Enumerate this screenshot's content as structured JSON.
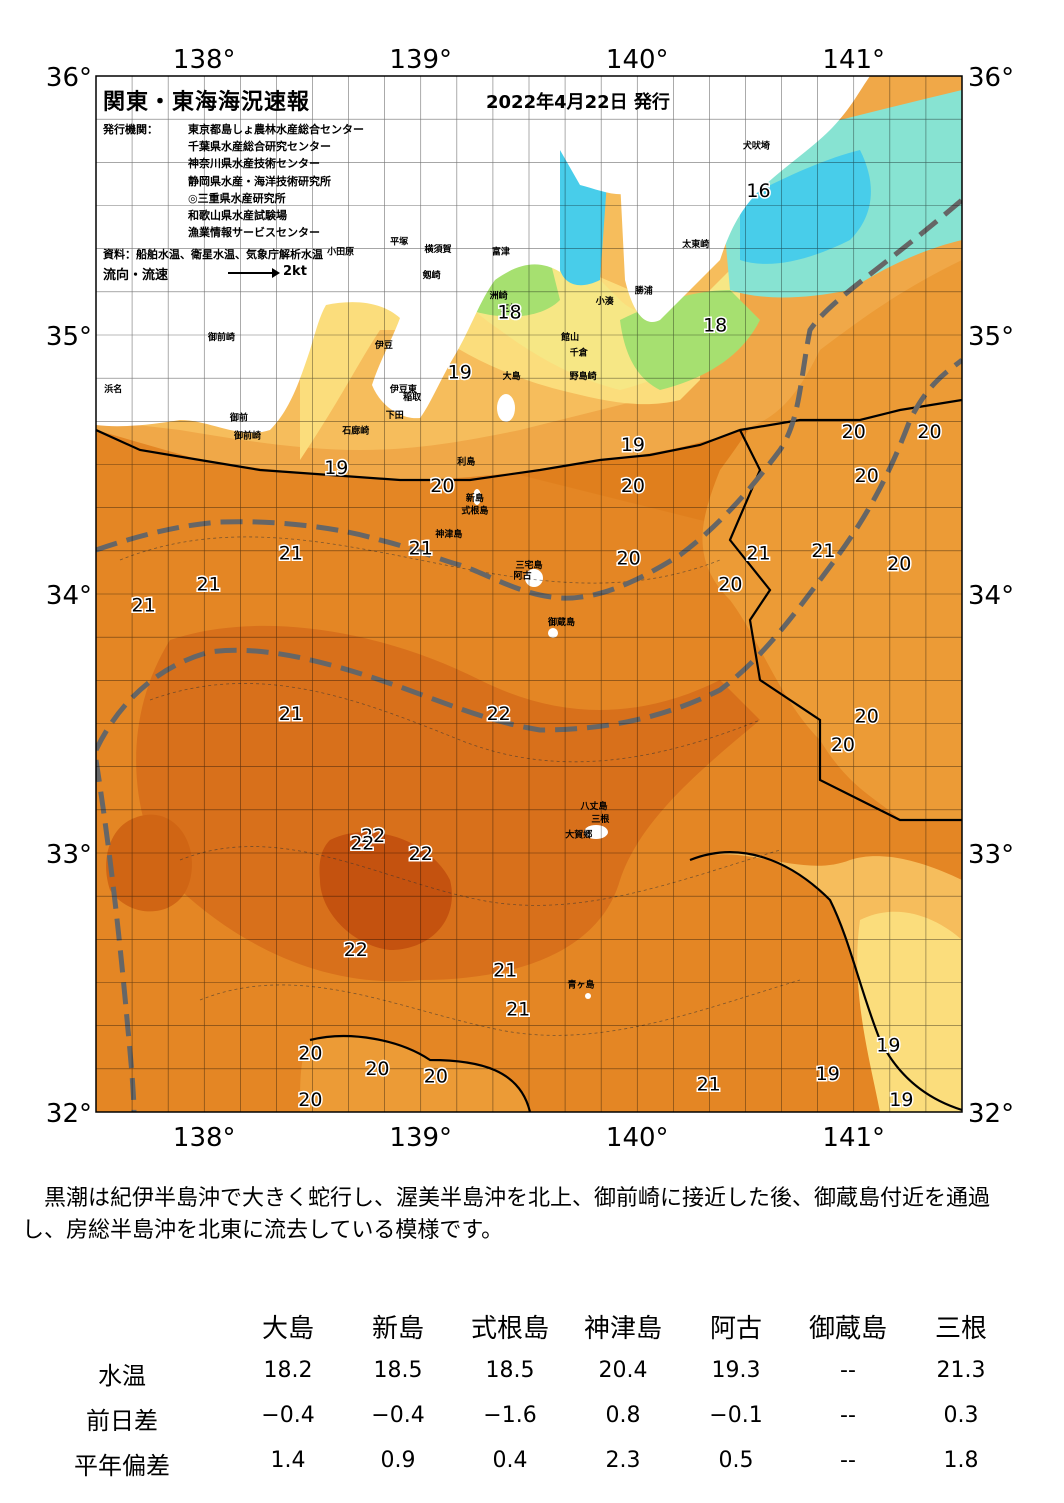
{
  "map": {
    "title": "関東・東海海況速報",
    "date": "2022年4月22日 発行",
    "publisher_label": "発行機関：",
    "publishers": [
      "東京都島しょ農林水産総合センター",
      "千葉県水産総合研究センター",
      "神奈川県水産技術センター",
      "静岡県水産・海洋技術研究所",
      "◎三重県水産研究所",
      "和歌山県水産試験場",
      "漁業情報サービスセンター"
    ],
    "source": "資料：船舶水温、衛星水温、気象庁解析水温",
    "legend_label": "流向・流速",
    "legend_unit": "2kt",
    "lon_labels": [
      "138°",
      "139°",
      "140°",
      "141°"
    ],
    "lat_labels": [
      "36°",
      "35°",
      "34°",
      "33°",
      "32°"
    ],
    "lon_range": [
      137.5,
      141.5
    ],
    "lat_range": [
      32.0,
      36.0
    ],
    "temperature_labels": [
      {
        "text": "16",
        "lon": 140.56,
        "lat": 35.56
      },
      {
        "text": "18",
        "lon": 139.41,
        "lat": 35.09
      },
      {
        "text": "18",
        "lon": 140.36,
        "lat": 35.04
      },
      {
        "text": "19",
        "lon": 139.18,
        "lat": 34.86
      },
      {
        "text": "19",
        "lon": 139.98,
        "lat": 34.58
      },
      {
        "text": "19",
        "lon": 138.61,
        "lat": 34.49
      },
      {
        "text": "20",
        "lon": 139.1,
        "lat": 34.42
      },
      {
        "text": "20",
        "lon": 139.98,
        "lat": 34.42
      },
      {
        "text": "20",
        "lon": 141.0,
        "lat": 34.63
      },
      {
        "text": "20",
        "lon": 141.35,
        "lat": 34.63
      },
      {
        "text": "20",
        "lon": 141.06,
        "lat": 34.46
      },
      {
        "text": "20",
        "lon": 139.96,
        "lat": 34.14
      },
      {
        "text": "20",
        "lon": 140.43,
        "lat": 34.04
      },
      {
        "text": "20",
        "lon": 141.21,
        "lat": 34.12
      },
      {
        "text": "20",
        "lon": 141.06,
        "lat": 33.53
      },
      {
        "text": "20",
        "lon": 140.95,
        "lat": 33.42
      },
      {
        "text": "21",
        "lon": 138.4,
        "lat": 34.16
      },
      {
        "text": "21",
        "lon": 139.0,
        "lat": 34.18
      },
      {
        "text": "21",
        "lon": 140.56,
        "lat": 34.16
      },
      {
        "text": "21",
        "lon": 140.86,
        "lat": 34.17
      },
      {
        "text": "21",
        "lon": 138.02,
        "lat": 34.04
      },
      {
        "text": "21",
        "lon": 137.72,
        "lat": 33.96
      },
      {
        "text": "21",
        "lon": 138.4,
        "lat": 33.54
      },
      {
        "text": "21",
        "lon": 139.39,
        "lat": 32.55
      },
      {
        "text": "21",
        "lon": 139.45,
        "lat": 32.4
      },
      {
        "text": "21",
        "lon": 140.33,
        "lat": 32.11
      },
      {
        "text": "22",
        "lon": 139.36,
        "lat": 33.54
      },
      {
        "text": "22",
        "lon": 138.78,
        "lat": 33.07
      },
      {
        "text": "22",
        "lon": 138.73,
        "lat": 33.04
      },
      {
        "text": "22",
        "lon": 139.0,
        "lat": 33.0
      },
      {
        "text": "22",
        "lon": 138.7,
        "lat": 32.63
      },
      {
        "text": "20",
        "lon": 138.49,
        "lat": 32.23
      },
      {
        "text": "20",
        "lon": 138.8,
        "lat": 32.17
      },
      {
        "text": "20",
        "lon": 139.07,
        "lat": 32.14
      },
      {
        "text": "20",
        "lon": 138.49,
        "lat": 32.05
      },
      {
        "text": "19",
        "lon": 141.16,
        "lat": 32.26
      },
      {
        "text": "19",
        "lon": 140.88,
        "lat": 32.15
      },
      {
        "text": "19",
        "lon": 141.22,
        "lat": 32.05
      }
    ],
    "place_labels": [
      {
        "text": "犬吠埼",
        "lon": 140.55,
        "lat": 35.72
      },
      {
        "text": "太東崎",
        "lon": 140.27,
        "lat": 35.34
      },
      {
        "text": "小田原",
        "lon": 138.63,
        "lat": 35.31
      },
      {
        "text": "平塚",
        "lon": 138.9,
        "lat": 35.35
      },
      {
        "text": "横須賀",
        "lon": 139.08,
        "lat": 35.32
      },
      {
        "text": "富津",
        "lon": 139.37,
        "lat": 35.31
      },
      {
        "text": "剱崎",
        "lon": 139.05,
        "lat": 35.22
      },
      {
        "text": "洲崎",
        "lon": 139.36,
        "lat": 35.14
      },
      {
        "text": "小湊",
        "lon": 139.85,
        "lat": 35.12
      },
      {
        "text": "勝浦",
        "lon": 140.03,
        "lat": 35.16
      },
      {
        "text": "三崎",
        "lon": 139.41,
        "lat": 35.09
      },
      {
        "text": "館山",
        "lon": 139.69,
        "lat": 34.98
      },
      {
        "text": "千倉",
        "lon": 139.73,
        "lat": 34.92
      },
      {
        "text": "野島崎",
        "lon": 139.75,
        "lat": 34.83
      },
      {
        "text": "浜名",
        "lon": 137.58,
        "lat": 34.78
      },
      {
        "text": "御前崎",
        "lon": 138.08,
        "lat": 34.98
      },
      {
        "text": "伊豆",
        "lon": 138.83,
        "lat": 34.95
      },
      {
        "text": "大島",
        "lon": 139.42,
        "lat": 34.83
      },
      {
        "text": "石廊崎",
        "lon": 138.7,
        "lat": 34.62
      },
      {
        "text": "下田",
        "lon": 138.88,
        "lat": 34.68
      },
      {
        "text": "稲取",
        "lon": 138.96,
        "lat": 34.75
      },
      {
        "text": "伊豆東",
        "lon": 138.92,
        "lat": 34.78
      },
      {
        "text": "利島",
        "lon": 139.21,
        "lat": 34.5
      },
      {
        "text": "新島",
        "lon": 139.25,
        "lat": 34.36
      },
      {
        "text": "式根島",
        "lon": 139.25,
        "lat": 34.31
      },
      {
        "text": "神津島",
        "lon": 139.13,
        "lat": 34.22
      },
      {
        "text": "三宅島",
        "lon": 139.5,
        "lat": 34.1
      },
      {
        "text": "阿古",
        "lon": 139.47,
        "lat": 34.06
      },
      {
        "text": "御蔵島",
        "lon": 139.65,
        "lat": 33.88
      },
      {
        "text": "八丈島",
        "lon": 139.8,
        "lat": 33.17
      },
      {
        "text": "三根",
        "lon": 139.83,
        "lat": 33.12
      },
      {
        "text": "大賀郷",
        "lon": 139.73,
        "lat": 33.06
      },
      {
        "text": "青ヶ島",
        "lon": 139.74,
        "lat": 32.48
      },
      {
        "text": "御前",
        "lon": 138.16,
        "lat": 34.67
      },
      {
        "text": "御前崎",
        "lon": 138.2,
        "lat": 34.6
      }
    ]
  },
  "colors": {
    "warm_dark": "#c4520f",
    "warm": "#e07f1d",
    "mid": "#ec9b36",
    "light": "#f6bd5c",
    "pale": "#fbdd7c",
    "yellow": "#f6e785",
    "green": "#a6e070",
    "cyan": "#48cdea",
    "teal": "#87e3d2",
    "land": "#ffffff",
    "kuroshio": "#666666"
  },
  "summary": "黒潮は紀伊半島沖で大きく蛇行し、渥美半島沖を北上、御前崎に接近した後、御蔵島付近を通過し、房総半島沖を北東に流去している模様です。",
  "table": {
    "columns": [
      "大島",
      "新島",
      "式根島",
      "神津島",
      "阿古",
      "御蔵島",
      "三根"
    ],
    "rows": [
      {
        "label": "水温",
        "values": [
          "18.2",
          "18.5",
          "18.5",
          "20.4",
          "19.3",
          "--",
          "21.3"
        ]
      },
      {
        "label": "前日差",
        "values": [
          "−0.4",
          "−0.4",
          "−1.6",
          "0.8",
          "−0.1",
          "--",
          "0.3"
        ]
      },
      {
        "label": "平年偏差",
        "values": [
          "1.4",
          "0.9",
          "0.4",
          "2.3",
          "0.5",
          "--",
          "1.8"
        ]
      }
    ]
  }
}
